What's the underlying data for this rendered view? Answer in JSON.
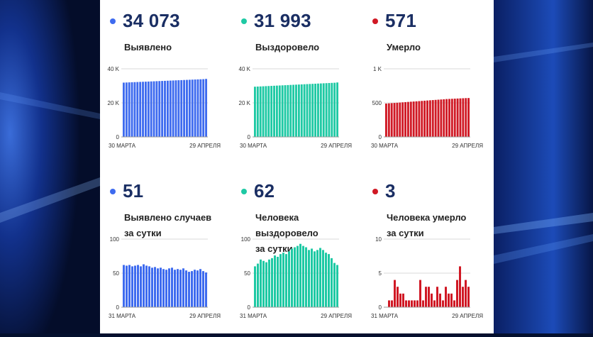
{
  "colors": {
    "blue": "#3e6bef",
    "teal": "#1ec9a4",
    "red": "#d01824",
    "big_text": "#1a2e63"
  },
  "cards": [
    {
      "id": "detected-total",
      "value": "34 073",
      "label_lines": [
        "Выявлено"
      ],
      "color": "blue"
    },
    {
      "id": "recovered-total",
      "value": "31 993",
      "label_lines": [
        "Выздоровело"
      ],
      "color": "teal"
    },
    {
      "id": "deaths-total",
      "value": "571",
      "label_lines": [
        "Умерло"
      ],
      "color": "red"
    },
    {
      "id": "detected-daily",
      "value": "51",
      "label_lines": [
        "Выявлено случаев",
        "за сутки"
      ],
      "color": "blue"
    },
    {
      "id": "recovered-daily",
      "value": "62",
      "label_lines": [
        "Человека выздоровело",
        "за сутки"
      ],
      "color": "teal"
    },
    {
      "id": "deaths-daily",
      "value": "3",
      "label_lines": [
        "Человека умерло",
        "за сутки"
      ],
      "color": "red"
    }
  ],
  "chart_data": [
    {
      "type": "bar",
      "y_ticks": [
        "0",
        "20 K",
        "40 K"
      ],
      "ylim": [
        0,
        40000
      ],
      "x_tick_labels": [
        "30 МАРТА",
        "29 АПРЕЛЯ"
      ],
      "values": [
        31900,
        31970,
        32040,
        32110,
        32180,
        32250,
        32320,
        32390,
        32460,
        32530,
        32600,
        32670,
        32740,
        32810,
        32880,
        32950,
        33020,
        33090,
        33160,
        33230,
        33300,
        33370,
        33440,
        33510,
        33580,
        33650,
        33720,
        33790,
        33860,
        33930,
        34073
      ],
      "color": "blue",
      "grid": true
    },
    {
      "type": "bar",
      "y_ticks": [
        "0",
        "20 K",
        "40 K"
      ],
      "ylim": [
        0,
        40000
      ],
      "x_tick_labels": [
        "30 МАРТА",
        "29 АПРЕЛЯ"
      ],
      "values": [
        29500,
        29580,
        29660,
        29740,
        29820,
        29900,
        29980,
        30060,
        30140,
        30220,
        30300,
        30380,
        30460,
        30540,
        30620,
        30700,
        30780,
        30860,
        30940,
        31020,
        31100,
        31180,
        31260,
        31340,
        31420,
        31500,
        31580,
        31660,
        31740,
        31820,
        31993
      ],
      "color": "teal",
      "grid": true
    },
    {
      "type": "bar",
      "y_ticks": [
        "0",
        "500",
        "1 K"
      ],
      "ylim": [
        0,
        1000
      ],
      "x_tick_labels": [
        "30 МАРТА",
        "29 АПРЕЛЯ"
      ],
      "values": [
        490,
        493,
        496,
        499,
        502,
        505,
        508,
        511,
        514,
        517,
        520,
        523,
        526,
        529,
        532,
        535,
        538,
        541,
        544,
        547,
        550,
        553,
        556,
        558,
        560,
        562,
        564,
        566,
        568,
        570,
        571
      ],
      "color": "red",
      "grid": true
    },
    {
      "type": "bar",
      "y_ticks": [
        "0",
        "50",
        "100"
      ],
      "ylim": [
        0,
        100
      ],
      "x_tick_labels": [
        "31 МАРТА",
        "29 АПРЕЛЯ"
      ],
      "values": [
        62,
        61,
        62,
        60,
        61,
        62,
        60,
        63,
        61,
        60,
        58,
        59,
        57,
        58,
        56,
        55,
        57,
        58,
        55,
        56,
        55,
        57,
        54,
        52,
        53,
        55,
        54,
        56,
        53,
        51
      ],
      "color": "blue",
      "grid": true
    },
    {
      "type": "bar",
      "y_ticks": [
        "0",
        "50",
        "100"
      ],
      "ylim": [
        0,
        100
      ],
      "x_tick_labels": [
        "31 МАРТА",
        "29 АПРЕЛЯ"
      ],
      "values": [
        60,
        64,
        70,
        68,
        66,
        70,
        72,
        76,
        74,
        78,
        80,
        78,
        82,
        86,
        88,
        90,
        93,
        90,
        88,
        84,
        86,
        82,
        84,
        87,
        84,
        80,
        78,
        72,
        65,
        62
      ],
      "color": "teal",
      "grid": true
    },
    {
      "type": "bar",
      "y_ticks": [
        "0",
        "5",
        "10"
      ],
      "ylim": [
        0,
        10
      ],
      "x_tick_labels": [
        "31 МАРТА",
        "29 АПРЕЛЯ"
      ],
      "values": [
        0,
        1,
        1,
        4,
        3,
        2,
        2,
        1,
        1,
        1,
        1,
        1,
        4,
        1,
        3,
        3,
        2,
        1,
        3,
        2,
        1,
        3,
        2,
        2,
        1,
        4,
        6,
        3,
        4,
        3
      ],
      "color": "red",
      "grid": true
    }
  ]
}
